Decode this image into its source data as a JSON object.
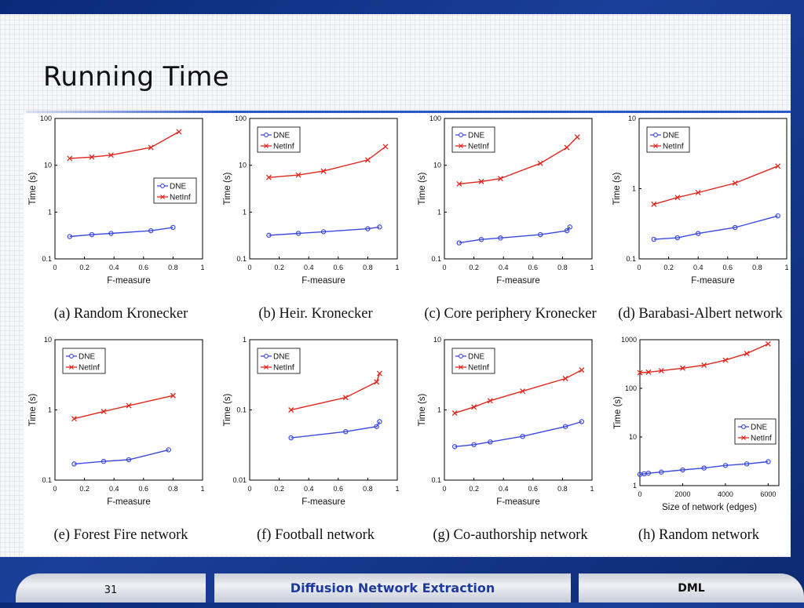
{
  "slide": {
    "title": "Running Time"
  },
  "footer": {
    "page_number": "31",
    "center_text": "Diffusion Network Extraction",
    "right_text": "DML"
  },
  "colors": {
    "dne": "#3a49e0",
    "netinf": "#e0271d"
  },
  "chart_data": [
    {
      "type": "line",
      "caption": "(a) Random Kronecker",
      "xlabel": "F-measure",
      "ylabel": "Time (s)",
      "xlim": [
        0,
        1
      ],
      "ylim": [
        0.1,
        100
      ],
      "yscale": "log",
      "xticks": [
        "0",
        "0.2",
        "0.4",
        "0.6",
        "0.8",
        "1"
      ],
      "yticks": [
        "0.1",
        "1",
        "10",
        "100"
      ],
      "legend": "right-center",
      "series": [
        {
          "name": "DNE",
          "x": [
            0.1,
            0.25,
            0.38,
            0.65,
            0.8
          ],
          "y": [
            0.3,
            0.33,
            0.35,
            0.4,
            0.47
          ]
        },
        {
          "name": "NetInf",
          "x": [
            0.1,
            0.25,
            0.38,
            0.65,
            0.84
          ],
          "y": [
            14,
            15,
            16.5,
            24,
            52
          ]
        }
      ]
    },
    {
      "type": "line",
      "caption": "(b) Heir. Kronecker",
      "xlabel": "F-measure",
      "ylabel": "Time (s)",
      "xlim": [
        0,
        1
      ],
      "ylim": [
        0.1,
        100
      ],
      "yscale": "log",
      "xticks": [
        "0",
        "0.2",
        "0.4",
        "0.6",
        "0.8",
        "1"
      ],
      "yticks": [
        "0.1",
        "1",
        "10",
        "100"
      ],
      "legend": "top-left",
      "series": [
        {
          "name": "DNE",
          "x": [
            0.13,
            0.33,
            0.5,
            0.8,
            0.88
          ],
          "y": [
            0.32,
            0.35,
            0.38,
            0.44,
            0.48
          ]
        },
        {
          "name": "NetInf",
          "x": [
            0.13,
            0.33,
            0.5,
            0.8,
            0.92
          ],
          "y": [
            5.5,
            6.2,
            7.5,
            13,
            25
          ]
        }
      ]
    },
    {
      "type": "line",
      "caption": "(c) Core periphery Kronecker",
      "xlabel": "F-measure",
      "ylabel": "Time (s)",
      "xlim": [
        0,
        1
      ],
      "ylim": [
        0.1,
        100
      ],
      "yscale": "log",
      "xticks": [
        "0",
        "0.2",
        "0.4",
        "0.6",
        "0.8",
        "1"
      ],
      "yticks": [
        "0.1",
        "1",
        "10",
        "100"
      ],
      "legend": "top-left",
      "series": [
        {
          "name": "DNE",
          "x": [
            0.1,
            0.25,
            0.38,
            0.65,
            0.83,
            0.85
          ],
          "y": [
            0.22,
            0.26,
            0.28,
            0.33,
            0.4,
            0.48
          ]
        },
        {
          "name": "NetInf",
          "x": [
            0.1,
            0.25,
            0.38,
            0.65,
            0.83,
            0.9
          ],
          "y": [
            4,
            4.5,
            5.2,
            11,
            24,
            40
          ]
        }
      ]
    },
    {
      "type": "line",
      "caption": "(d) Barabasi-Albert network",
      "xlabel": "F-measure",
      "ylabel": "Time (s)",
      "xlim": [
        0,
        1
      ],
      "ylim": [
        0.1,
        10
      ],
      "yscale": "log",
      "xticks": [
        "0",
        "0.2",
        "0.4",
        "0.6",
        "0.8",
        "1"
      ],
      "yticks": [
        "0.1",
        "1",
        "10"
      ],
      "legend": "top-left",
      "series": [
        {
          "name": "DNE",
          "x": [
            0.1,
            0.26,
            0.4,
            0.65,
            0.94
          ],
          "y": [
            0.19,
            0.2,
            0.23,
            0.28,
            0.41
          ]
        },
        {
          "name": "NetInf",
          "x": [
            0.1,
            0.26,
            0.4,
            0.65,
            0.94
          ],
          "y": [
            0.6,
            0.75,
            0.88,
            1.2,
            2.1
          ]
        }
      ]
    },
    {
      "type": "line",
      "caption": "(e) Forest Fire network",
      "xlabel": "F-measure",
      "ylabel": "Time (s)",
      "xlim": [
        0,
        1
      ],
      "ylim": [
        0.1,
        10
      ],
      "yscale": "log",
      "xticks": [
        "0",
        "0.2",
        "0.4",
        "0.6",
        "0.8",
        "1"
      ],
      "yticks": [
        "0.1",
        "1",
        "10"
      ],
      "legend": "top-left",
      "series": [
        {
          "name": "DNE",
          "x": [
            0.13,
            0.33,
            0.5,
            0.77
          ],
          "y": [
            0.17,
            0.185,
            0.195,
            0.27
          ]
        },
        {
          "name": "NetInf",
          "x": [
            0.13,
            0.33,
            0.5,
            0.8
          ],
          "y": [
            0.75,
            0.95,
            1.15,
            1.6
          ]
        }
      ]
    },
    {
      "type": "line",
      "caption": "(f) Football network",
      "xlabel": "F-measure",
      "ylabel": "Time (s)",
      "xlim": [
        0,
        1
      ],
      "ylim": [
        0.01,
        1
      ],
      "yscale": "log",
      "xticks": [
        "0",
        "0.2",
        "0.4",
        "0.6",
        "0.8",
        "1"
      ],
      "yticks": [
        "0.01",
        "0.1",
        "1"
      ],
      "legend": "top-left",
      "series": [
        {
          "name": "DNE",
          "x": [
            0.28,
            0.65,
            0.86,
            0.88
          ],
          "y": [
            0.04,
            0.049,
            0.058,
            0.068
          ]
        },
        {
          "name": "NetInf",
          "x": [
            0.28,
            0.65,
            0.86,
            0.88
          ],
          "y": [
            0.1,
            0.15,
            0.25,
            0.33
          ]
        }
      ]
    },
    {
      "type": "line",
      "caption": "(g) Co-authorship network",
      "xlabel": "F-measure",
      "ylabel": "Time (s)",
      "xlim": [
        0,
        1
      ],
      "ylim": [
        0.1,
        10
      ],
      "yscale": "log",
      "xticks": [
        "0",
        "0.2",
        "0.4",
        "0.6",
        "0.8",
        "1"
      ],
      "yticks": [
        "0.1",
        "1",
        "10"
      ],
      "legend": "top-left",
      "series": [
        {
          "name": "DNE",
          "x": [
            0.07,
            0.2,
            0.31,
            0.53,
            0.82,
            0.93
          ],
          "y": [
            0.3,
            0.32,
            0.35,
            0.42,
            0.58,
            0.68
          ]
        },
        {
          "name": "NetInf",
          "x": [
            0.07,
            0.2,
            0.31,
            0.53,
            0.82,
            0.93
          ],
          "y": [
            0.9,
            1.1,
            1.35,
            1.85,
            2.8,
            3.7
          ]
        }
      ]
    },
    {
      "type": "line",
      "caption": "(h) Random network",
      "xlabel": "Size of network (edges)",
      "ylabel": "Time (s)",
      "xlim": [
        0,
        6500
      ],
      "ylim": [
        1,
        1000
      ],
      "yscale": "log",
      "xticks": [
        "0",
        "2000",
        "4000",
        "6000"
      ],
      "yticks": [
        "1",
        "10",
        "100",
        "1000"
      ],
      "legend": "right-center",
      "series": [
        {
          "name": "DNE",
          "x": [
            0,
            200,
            400,
            1000,
            2000,
            3000,
            4000,
            5000,
            6000
          ],
          "y": [
            1.7,
            1.75,
            1.8,
            1.9,
            2.1,
            2.3,
            2.6,
            2.8,
            3.1
          ]
        },
        {
          "name": "NetInf",
          "x": [
            0,
            400,
            1000,
            2000,
            3000,
            4000,
            5000,
            6000
          ],
          "y": [
            210,
            215,
            230,
            260,
            300,
            380,
            520,
            820
          ]
        }
      ]
    }
  ]
}
